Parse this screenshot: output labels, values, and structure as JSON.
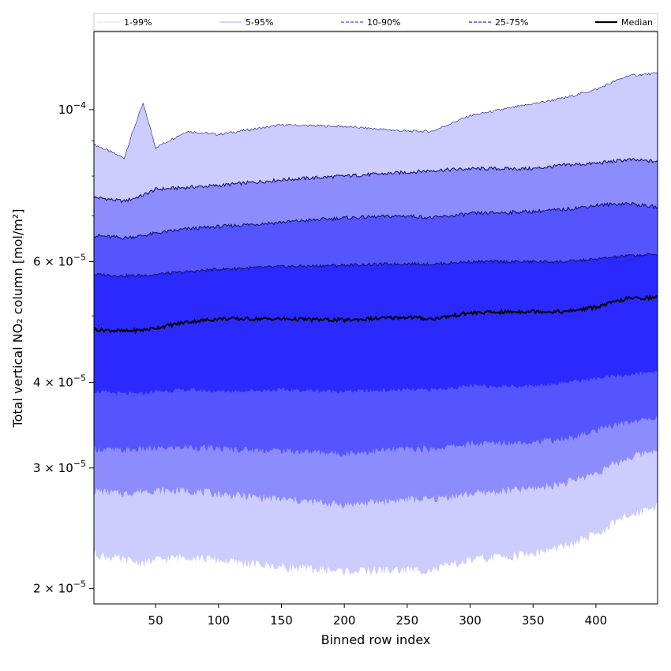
{
  "chart_data": {
    "type": "area",
    "title": "",
    "xlabel": "Binned row index",
    "ylabel": "Total vertical NO₂ column [mol/m²]",
    "xlim": [
      1,
      449
    ],
    "ylim": [
      1.9e-05,
      0.00013
    ],
    "yscale": "log",
    "x_ticks": [
      {
        "value": 50,
        "label": "50"
      },
      {
        "value": 100,
        "label": "100"
      },
      {
        "value": 150,
        "label": "150"
      },
      {
        "value": 200,
        "label": "200"
      },
      {
        "value": 250,
        "label": "250"
      },
      {
        "value": 300,
        "label": "300"
      },
      {
        "value": 350,
        "label": "350"
      },
      {
        "value": 400,
        "label": "400"
      }
    ],
    "y_ticks": [
      {
        "value": 2e-05,
        "mantissa": "2 × 10",
        "exponent": "−5"
      },
      {
        "value": 3e-05,
        "mantissa": "3 × 10",
        "exponent": "−5"
      },
      {
        "value": 4e-05,
        "mantissa": "4 × 10",
        "exponent": "−5"
      },
      {
        "value": 6e-05,
        "mantissa": "6 × 10",
        "exponent": "−5"
      },
      {
        "value": 0.0001,
        "mantissa": "10",
        "exponent": "−4"
      }
    ],
    "y_minor_ticks": [
      5e-05,
      7e-05,
      8e-05,
      9e-05
    ],
    "legend": {
      "placement": "top",
      "entries": [
        {
          "label": "1-99%",
          "color": "#ccccff",
          "style": "thin"
        },
        {
          "label": "5-95%",
          "color": "#8a8aff",
          "style": "thin"
        },
        {
          "label": "10-90%",
          "color": "#6a6aff",
          "style": "dashed"
        },
        {
          "label": "25-75%",
          "color": "#4a4aff",
          "style": "dashed"
        },
        {
          "label": "Median",
          "color": "#000000",
          "style": "solid"
        }
      ]
    },
    "x": [
      1,
      25,
      40,
      50,
      75,
      100,
      150,
      200,
      250,
      270,
      300,
      350,
      375,
      400,
      425,
      449
    ],
    "series": [
      {
        "name": "1-99% upper",
        "values": [
          8.9e-05,
          8.5e-05,
          0.000102,
          8.8e-05,
          9.3e-05,
          9.2e-05,
          9.5e-05,
          9.45e-05,
          9.3e-05,
          9.3e-05,
          9.8e-05,
          0.000102,
          0.000104,
          0.000107,
          0.000112,
          0.000113
        ]
      },
      {
        "name": "5-95% upper",
        "values": [
          7.45e-05,
          7.35e-05,
          7.5e-05,
          7.65e-05,
          7.7e-05,
          7.75e-05,
          7.9e-05,
          8e-05,
          8.1e-05,
          8.15e-05,
          8.2e-05,
          8.2e-05,
          8.3e-05,
          8.35e-05,
          8.45e-05,
          8.4e-05
        ]
      },
      {
        "name": "10-90% upper",
        "values": [
          6.55e-05,
          6.5e-05,
          6.55e-05,
          6.6e-05,
          6.7e-05,
          6.75e-05,
          6.85e-05,
          6.95e-05,
          7e-05,
          6.95e-05,
          7.05e-05,
          7.1e-05,
          7.15e-05,
          7.25e-05,
          7.3e-05,
          7.2e-05
        ]
      },
      {
        "name": "25-75% upper",
        "values": [
          5.75e-05,
          5.72e-05,
          5.73e-05,
          5.75e-05,
          5.8e-05,
          5.85e-05,
          5.9e-05,
          5.93e-05,
          5.96e-05,
          5.95e-05,
          6e-05,
          6e-05,
          6e-05,
          6.05e-05,
          6.12e-05,
          6.15e-05
        ]
      },
      {
        "name": "Median",
        "values": [
          4.78e-05,
          4.75e-05,
          4.77e-05,
          4.8e-05,
          4.9e-05,
          4.95e-05,
          4.95e-05,
          4.93e-05,
          4.98e-05,
          4.95e-05,
          5.05e-05,
          5.08e-05,
          5.07e-05,
          5.15e-05,
          5.3e-05,
          5.32e-05
        ]
      },
      {
        "name": "25-75% lower",
        "values": [
          3.88e-05,
          3.85e-05,
          3.85e-05,
          3.88e-05,
          3.9e-05,
          3.88e-05,
          3.9e-05,
          3.88e-05,
          3.9e-05,
          3.9e-05,
          3.95e-05,
          3.95e-05,
          4e-05,
          4.05e-05,
          4.1e-05,
          4.15e-05
        ]
      },
      {
        "name": "10-90% lower",
        "values": [
          3.2e-05,
          3.18e-05,
          3.2e-05,
          3.2e-05,
          3.22e-05,
          3.2e-05,
          3.18e-05,
          3.15e-05,
          3.2e-05,
          3.2e-05,
          3.25e-05,
          3.28e-05,
          3.3e-05,
          3.4e-05,
          3.5e-05,
          3.55e-05
        ]
      },
      {
        "name": "5-95% lower",
        "values": [
          2.78e-05,
          2.75e-05,
          2.78e-05,
          2.78e-05,
          2.78e-05,
          2.75e-05,
          2.7e-05,
          2.65e-05,
          2.7e-05,
          2.7e-05,
          2.75e-05,
          2.8e-05,
          2.85e-05,
          2.95e-05,
          3.1e-05,
          3.2e-05
        ]
      },
      {
        "name": "1-99% lower",
        "values": [
          2.25e-05,
          2.2e-05,
          2.18e-05,
          2.2e-05,
          2.23e-05,
          2.2e-05,
          2.15e-05,
          2.12e-05,
          2.13e-05,
          2.13e-05,
          2.2e-05,
          2.25e-05,
          2.3e-05,
          2.4e-05,
          2.55e-05,
          2.65e-05
        ]
      }
    ],
    "band_colors": [
      "#ccccff",
      "#8c8cff",
      "#5555ff",
      "#2a2aff"
    ]
  }
}
